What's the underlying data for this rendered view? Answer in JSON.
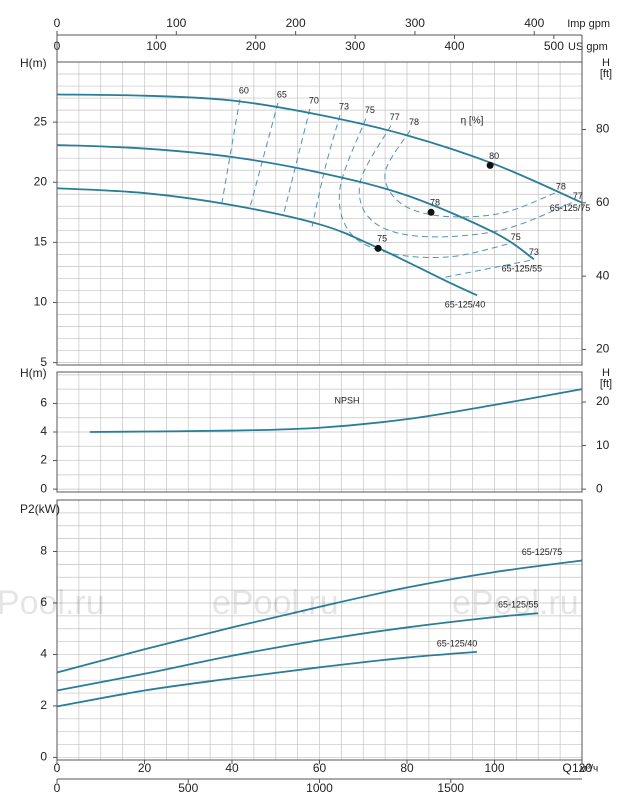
{
  "watermark": "ePool.ru",
  "chart_data": [
    {
      "type": "line",
      "ylabel": "H(m)",
      "y2label": [
        "H",
        "[ft]"
      ],
      "xlim": [
        0,
        120
      ],
      "xgrid": [
        0,
        5,
        10,
        15,
        20,
        25,
        30,
        35,
        40,
        45,
        50,
        55,
        60,
        65,
        70,
        75,
        80,
        85,
        90,
        95,
        100,
        105,
        110,
        115,
        120
      ],
      "ylim": [
        4.8,
        30
      ],
      "yticks": [
        5,
        10,
        15,
        20,
        25
      ],
      "ygrid": [
        5,
        6,
        7,
        8,
        9,
        10,
        11,
        12,
        13,
        14,
        15,
        16,
        17,
        18,
        19,
        20,
        21,
        22,
        23,
        24,
        25,
        26,
        27,
        28,
        29
      ],
      "y2lim": [
        15.75,
        98.43
      ],
      "y2ticks": [
        20,
        40,
        60,
        80
      ],
      "top_axes": [
        {
          "label": "US gpm",
          "lim": [
            0,
            528.3
          ],
          "ticks": [
            0,
            100,
            200,
            300,
            400,
            500
          ]
        },
        {
          "label": "Imp gpm",
          "lim": [
            0,
            440
          ],
          "ticks": [
            0,
            100,
            200,
            300,
            400
          ]
        }
      ],
      "series": [
        {
          "name": "65-125/75",
          "color": "#2a7d99",
          "x": [
            0,
            20,
            40,
            60,
            80,
            100,
            120
          ],
          "y": [
            27.3,
            27.2,
            26.8,
            25.6,
            23.9,
            21.5,
            18.3
          ]
        },
        {
          "name": "65-125/55",
          "color": "#2a7d99",
          "x": [
            0,
            20,
            40,
            60,
            80,
            100,
            109
          ],
          "y": [
            23.1,
            22.8,
            22.1,
            20.8,
            18.9,
            15.8,
            13.6
          ]
        },
        {
          "name": "65-125/40",
          "color": "#2a7d99",
          "x": [
            0,
            20,
            40,
            60,
            73,
            90,
            96
          ],
          "y": [
            19.5,
            19.1,
            18.1,
            16.5,
            14.6,
            11.6,
            10.6
          ]
        }
      ],
      "efficiency_label": "η [%]",
      "efficiency": [
        {
          "name": "60",
          "x": [
            41.8,
            37.7
          ],
          "y": [
            26.9,
            18.3
          ]
        },
        {
          "name": "65",
          "x": [
            50.5,
            44.1
          ],
          "y": [
            26.6,
            17.9
          ]
        },
        {
          "name": "70",
          "x": [
            57.8,
            51.7
          ],
          "y": [
            26.1,
            17.2
          ]
        },
        {
          "name": "73",
          "x": [
            64.7,
            61.3,
            58.3
          ],
          "y": [
            25.6,
            21.2,
            16.3
          ]
        },
        {
          "name": "75",
          "x": [
            70.6,
            64.7,
            67.0,
            76.1,
            89.8,
            103.5
          ],
          "y": [
            25.3,
            19.5,
            15.8,
            14.1,
            13.8,
            14.9
          ]
        },
        {
          "name": "77",
          "x": [
            76.3,
            69.3,
            72.0,
            83.0,
            101.3,
            117.7
          ],
          "y": [
            24.7,
            20.0,
            16.8,
            15.5,
            16.0,
            18.3
          ]
        },
        {
          "name": "78",
          "x": [
            80.7,
            75.0,
            78.4,
            87.5,
            101.3,
            113.8
          ],
          "y": [
            24.3,
            20.8,
            18.3,
            17.2,
            17.4,
            19.1
          ]
        },
        {
          "name": "73",
          "x": [
            108.1,
            88.7
          ],
          "y": [
            13.5,
            12.1
          ]
        }
      ],
      "markers": [
        {
          "label": "80",
          "x": 99,
          "y": 21.4
        },
        {
          "label": "78",
          "x": 85.5,
          "y": 17.5
        },
        {
          "label": "75",
          "x": 73.4,
          "y": 14.5
        }
      ]
    },
    {
      "type": "line",
      "ylabel": "H(m)",
      "y2label": [
        "H",
        "[ft]"
      ],
      "xlim": [
        0,
        120
      ],
      "xgrid": [
        0,
        5,
        10,
        15,
        20,
        25,
        30,
        35,
        40,
        45,
        50,
        55,
        60,
        65,
        70,
        75,
        80,
        85,
        90,
        95,
        100,
        105,
        110,
        115,
        120
      ],
      "ylim": [
        -0.2,
        8.2
      ],
      "yticks": [
        0,
        2,
        4,
        6
      ],
      "ygrid": [
        0,
        1,
        2,
        3,
        4,
        5,
        6,
        7,
        8
      ],
      "y2lim": [
        -0.66,
        26.9
      ],
      "y2ticks": [
        0,
        10,
        20
      ],
      "series": [
        {
          "name": "NPSH",
          "color": "#2a7d99",
          "x": [
            7.5,
            40,
            60,
            80,
            100,
            120
          ],
          "y": [
            4.0,
            4.1,
            4.3,
            4.9,
            5.9,
            7.0
          ]
        }
      ]
    },
    {
      "type": "line",
      "ylabel": "P2(kW)",
      "xlabel": "Q",
      "xunit": "м³/ч",
      "xlim": [
        0,
        120
      ],
      "xticks": [
        0,
        20,
        40,
        60,
        80,
        100,
        120
      ],
      "xgrid": [
        0,
        5,
        10,
        15,
        20,
        25,
        30,
        35,
        40,
        45,
        50,
        55,
        60,
        65,
        70,
        75,
        80,
        85,
        90,
        95,
        100,
        105,
        110,
        115,
        120
      ],
      "ylim": [
        -0.1,
        10
      ],
      "yticks": [
        0,
        2,
        4,
        6,
        8
      ],
      "ygrid": [
        0,
        0.5,
        1,
        1.5,
        2,
        2.5,
        3,
        3.5,
        4,
        4.5,
        5,
        5.5,
        6,
        6.5,
        7,
        7.5,
        8,
        8.5,
        9,
        9.5
      ],
      "bottom_axis": {
        "lim": [
          0,
          2000
        ],
        "ticks": [
          0,
          500,
          1000,
          1500
        ]
      },
      "series": [
        {
          "name": "65-125/75",
          "color": "#2a7d99",
          "x": [
            0,
            20,
            40,
            60,
            80,
            100,
            120
          ],
          "y": [
            3.3,
            4.2,
            5.05,
            5.85,
            6.6,
            7.2,
            7.65
          ]
        },
        {
          "name": "65-125/55",
          "color": "#2a7d99",
          "x": [
            0,
            20,
            40,
            60,
            80,
            100,
            110
          ],
          "y": [
            2.6,
            3.25,
            3.95,
            4.55,
            5.05,
            5.45,
            5.6
          ]
        },
        {
          "name": "65-125/40",
          "color": "#2a7d99",
          "x": [
            0,
            20,
            40,
            60,
            80,
            96
          ],
          "y": [
            1.98,
            2.6,
            3.07,
            3.5,
            3.88,
            4.1
          ]
        }
      ]
    }
  ]
}
